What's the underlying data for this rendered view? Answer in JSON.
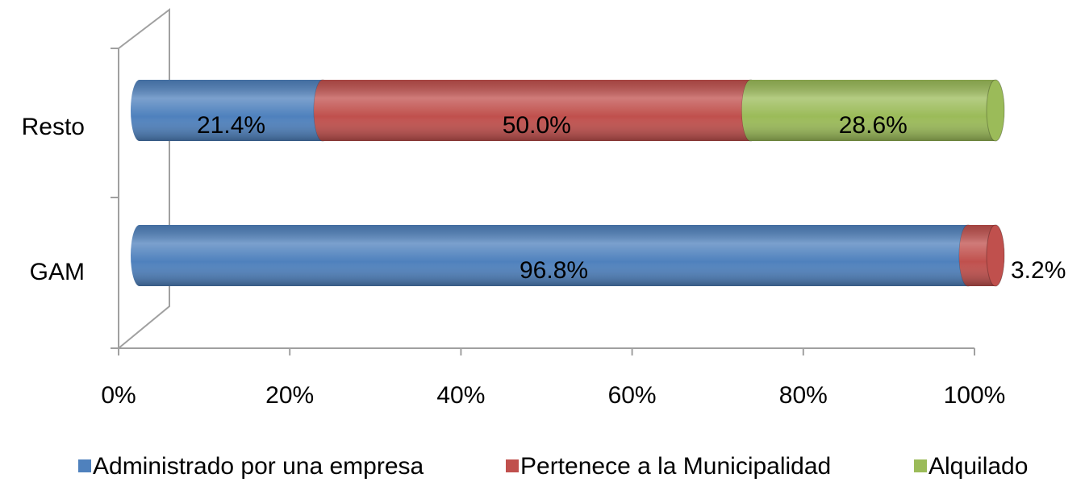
{
  "chart_data": {
    "type": "stacked-bar-horizontal",
    "categories": [
      "GAM",
      "Resto"
    ],
    "series": [
      {
        "name": "Administrado por una empresa",
        "color": "#4f81bd",
        "values": [
          96.8,
          21.4
        ],
        "value_labels": [
          "96.8%",
          "21.4%"
        ]
      },
      {
        "name": "Pertenece a la Municipalidad",
        "color": "#c0504d",
        "values": [
          3.2,
          50.0
        ],
        "value_labels": [
          "3.2%",
          "50.0%"
        ]
      },
      {
        "name": "Alquilado",
        "color": "#9bbb59",
        "values": [
          0,
          28.6
        ],
        "value_labels": [
          null,
          "28.6%"
        ]
      }
    ],
    "xlim": [
      0,
      100
    ],
    "xticks": [
      {
        "value": 0,
        "label": "0%"
      },
      {
        "value": 20,
        "label": "20%"
      },
      {
        "value": 40,
        "label": "40%"
      },
      {
        "value": 60,
        "label": "60%"
      },
      {
        "value": 80,
        "label": "80%"
      },
      {
        "value": 100,
        "label": "100%"
      }
    ],
    "legend": "bottom"
  }
}
